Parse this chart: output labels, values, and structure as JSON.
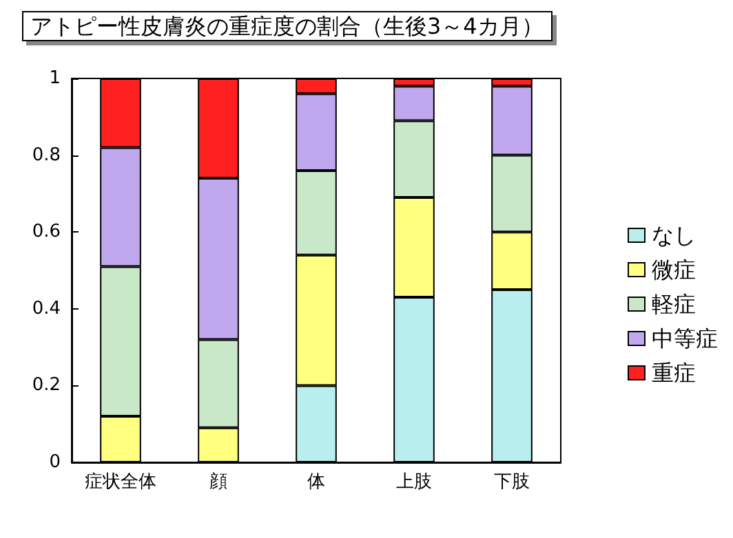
{
  "chart_data": {
    "type": "bar",
    "title": "アトピー性皮膚炎の重症度の割合（生後3～4カ月）",
    "categories": [
      "症状全体",
      "顔",
      "体",
      "上肢",
      "下肢"
    ],
    "stacked": true,
    "series": [
      {
        "name": "なし",
        "color": "#b8eeee",
        "values": [
          0,
          0,
          0.2,
          0.43,
          0.45
        ]
      },
      {
        "name": "微症",
        "color": "#ffff80",
        "values": [
          0.12,
          0.09,
          0.34,
          0.26,
          0.15
        ]
      },
      {
        "name": "軽症",
        "color": "#c8e8c8",
        "values": [
          0.39,
          0.23,
          0.22,
          0.2,
          0.2
        ]
      },
      {
        "name": "中等症",
        "color": "#c0a8ee",
        "values": [
          0.31,
          0.42,
          0.2,
          0.09,
          0.18
        ]
      },
      {
        "name": "重症",
        "color": "#ff2020",
        "values": [
          0.18,
          0.26,
          0.04,
          0.02,
          0.02
        ]
      }
    ],
    "ylim": [
      0,
      1
    ],
    "yticks": [
      0,
      0.2,
      0.4,
      0.6,
      0.8,
      1
    ],
    "grid": false,
    "legend": "right"
  }
}
